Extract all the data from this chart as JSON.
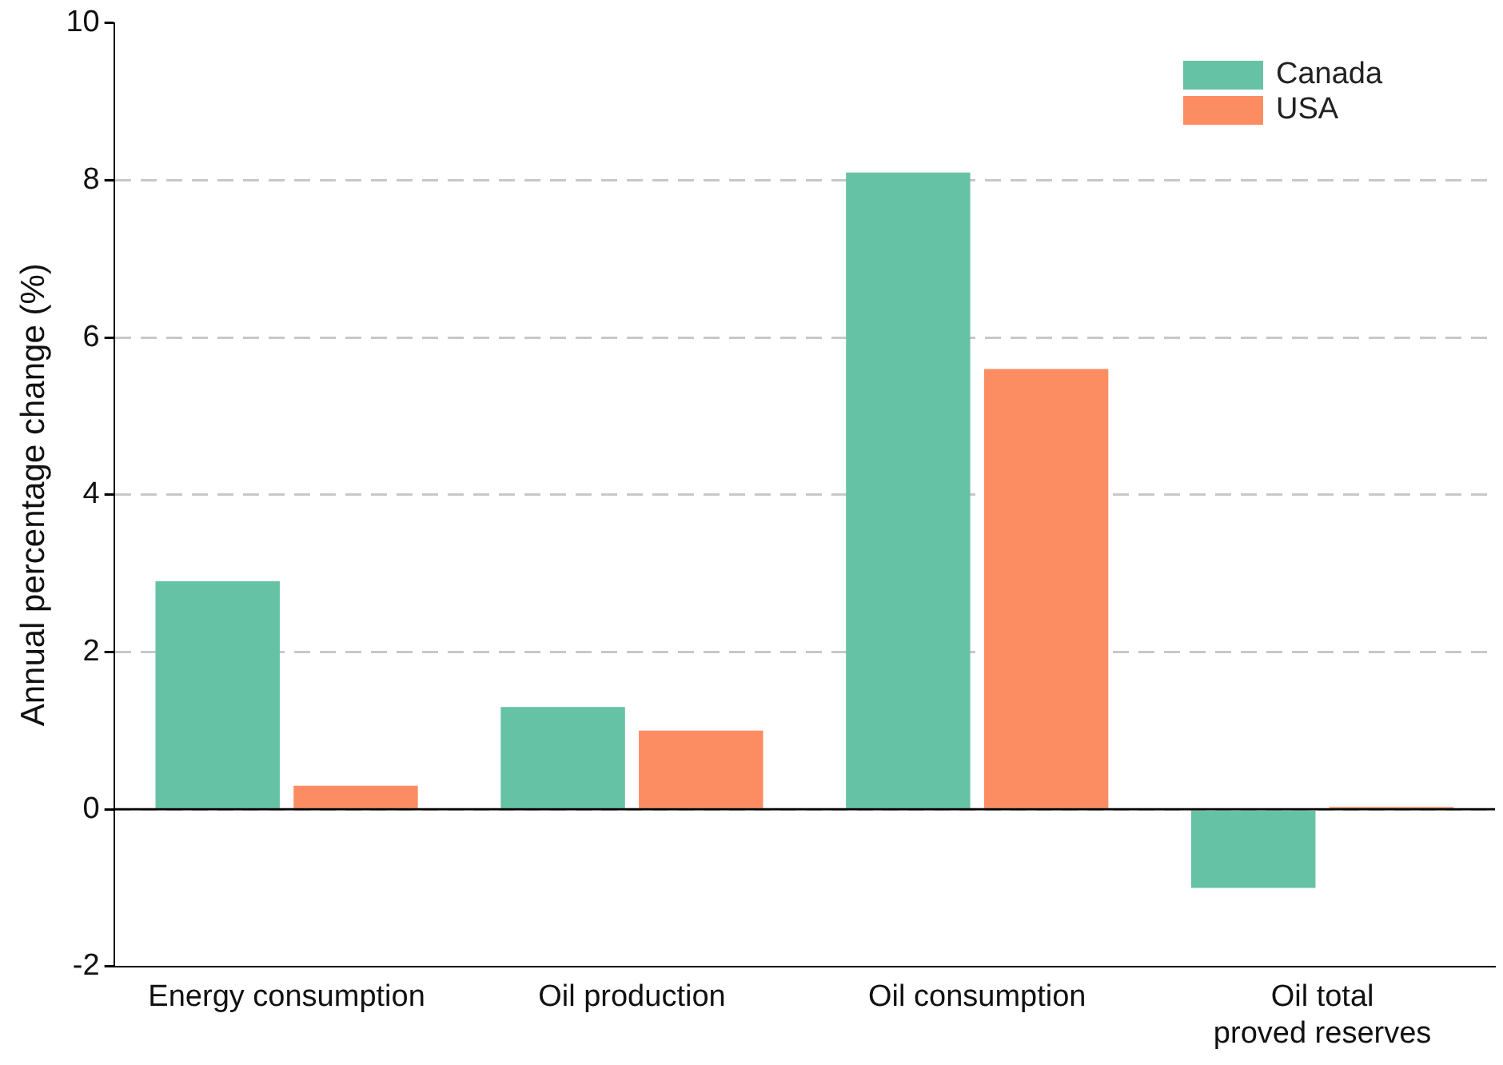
{
  "chart_data": {
    "type": "bar",
    "ylabel": "Annual percentage change (%)",
    "categories": [
      "Energy consumption",
      "Oil production",
      "Oil consumption",
      "Oil total\nproved reserves"
    ],
    "series": [
      {
        "name": "Canada",
        "color": "#66c2a5",
        "values": [
          2.9,
          1.3,
          8.1,
          -1.0
        ]
      },
      {
        "name": "USA",
        "color": "#fc8d62",
        "values": [
          0.3,
          1.0,
          5.6,
          0.03
        ]
      }
    ],
    "ylim": [
      -2,
      10
    ],
    "yticks": [
      -2,
      0,
      2,
      4,
      6,
      8,
      10
    ],
    "grid": "y",
    "line_style": "dashed",
    "legend": "top right",
    "ref_lines": [
      {
        "axis": "y",
        "value": 0,
        "color": "#000000"
      }
    ]
  }
}
